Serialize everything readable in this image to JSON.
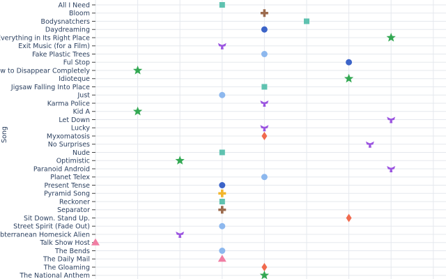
{
  "chart_data": {
    "type": "scatter",
    "ylabel": "Song",
    "xlabel": "",
    "grid": true,
    "legend": "none",
    "x_range": [
      -2,
      8
    ],
    "categories": [
      "All I Need",
      "Bloom",
      "Bodysnatchers",
      "Daydreaming",
      "Everything in Its Right Place",
      "Exit Music (for a Film)",
      "Fake Plastic Trees",
      "Ful Stop",
      "How to Disappear Completely",
      "Idioteque",
      "Jigsaw Falling Into Place",
      "Just",
      "Karma Police",
      "Kid A",
      "Let Down",
      "Lucky",
      "Myxomatosis",
      "No Surprises",
      "Nude",
      "Optimistic",
      "Paranoid Android",
      "Planet Telex",
      "Present Tense",
      "Pyramid Song",
      "Reckoner",
      "Separator",
      "Sit Down. Stand Up.",
      "Street Spirit (Fade Out)",
      "Subterranean Homesick Alien",
      "Talk Show Host",
      "The Bends",
      "The Daily Mail",
      "The Gloaming",
      "The National Anthem"
    ],
    "points": [
      {
        "song": "All I Need",
        "x": 3,
        "shape": "square",
        "color": "#5fc2b0"
      },
      {
        "song": "Bloom",
        "x": 4,
        "shape": "cross",
        "color": "#9c6b4e"
      },
      {
        "song": "Bodysnatchers",
        "x": 5,
        "shape": "square",
        "color": "#5fc2b0"
      },
      {
        "song": "Daydreaming",
        "x": 4,
        "shape": "circle",
        "color": "#3c64c8"
      },
      {
        "song": "Everything in Its Right Place",
        "x": 7,
        "shape": "star",
        "color": "#33a853"
      },
      {
        "song": "Exit Music (for a Film)",
        "x": 3,
        "shape": "trident",
        "color": "#9b55e0"
      },
      {
        "song": "Fake Plastic Trees",
        "x": 4,
        "shape": "circle",
        "color": "#8db8ee"
      },
      {
        "song": "Ful Stop",
        "x": 6,
        "shape": "circle",
        "color": "#3c64c8"
      },
      {
        "song": "How to Disappear Completely",
        "x": 1,
        "shape": "star",
        "color": "#33a853"
      },
      {
        "song": "Idioteque",
        "x": 6,
        "shape": "star",
        "color": "#33a853"
      },
      {
        "song": "Jigsaw Falling Into Place",
        "x": 4,
        "shape": "square",
        "color": "#5fc2b0"
      },
      {
        "song": "Just",
        "x": 3,
        "shape": "circle",
        "color": "#8db8ee"
      },
      {
        "song": "Karma Police",
        "x": 4,
        "shape": "trident",
        "color": "#9b55e0"
      },
      {
        "song": "Kid A",
        "x": 1,
        "shape": "star",
        "color": "#33a853"
      },
      {
        "song": "Let Down",
        "x": 7,
        "shape": "trident",
        "color": "#9b55e0"
      },
      {
        "song": "Lucky",
        "x": 4,
        "shape": "trident",
        "color": "#9b55e0"
      },
      {
        "song": "Myxomatosis",
        "x": 4,
        "shape": "diamond",
        "color": "#f06a4e"
      },
      {
        "song": "No Surprises",
        "x": 6.5,
        "shape": "trident",
        "color": "#9b55e0"
      },
      {
        "song": "Nude",
        "x": 3,
        "shape": "square",
        "color": "#5fc2b0"
      },
      {
        "song": "Optimistic",
        "x": 2,
        "shape": "star",
        "color": "#33a853"
      },
      {
        "song": "Paranoid Android",
        "x": 7,
        "shape": "trident",
        "color": "#9b55e0"
      },
      {
        "song": "Planet Telex",
        "x": 4,
        "shape": "circle",
        "color": "#8db8ee"
      },
      {
        "song": "Present Tense",
        "x": 3,
        "shape": "circle",
        "color": "#3c64c8"
      },
      {
        "song": "Pyramid Song",
        "x": 3,
        "shape": "cross",
        "color": "#f2b62d"
      },
      {
        "song": "Reckoner",
        "x": 3,
        "shape": "square",
        "color": "#5fc2b0"
      },
      {
        "song": "Separator",
        "x": 3,
        "shape": "cross",
        "color": "#9c6b4e"
      },
      {
        "song": "Sit Down. Stand Up.",
        "x": 6,
        "shape": "diamond",
        "color": "#f06a4e"
      },
      {
        "song": "Street Spirit (Fade Out)",
        "x": 3,
        "shape": "circle",
        "color": "#8db8ee"
      },
      {
        "song": "Subterranean Homesick Alien",
        "x": 2,
        "shape": "trident",
        "color": "#9b55e0"
      },
      {
        "song": "Talk Show Host",
        "x": 0,
        "shape": "triangle",
        "color": "#f07ea3"
      },
      {
        "song": "The Bends",
        "x": 3,
        "shape": "circle",
        "color": "#8db8ee"
      },
      {
        "song": "The Daily Mail",
        "x": 3,
        "shape": "triangle",
        "color": "#f07ea3"
      },
      {
        "song": "The Gloaming",
        "x": 4,
        "shape": "diamond",
        "color": "#f06a4e"
      },
      {
        "song": "The National Anthem",
        "x": 4,
        "shape": "star",
        "color": "#33a853"
      }
    ]
  }
}
